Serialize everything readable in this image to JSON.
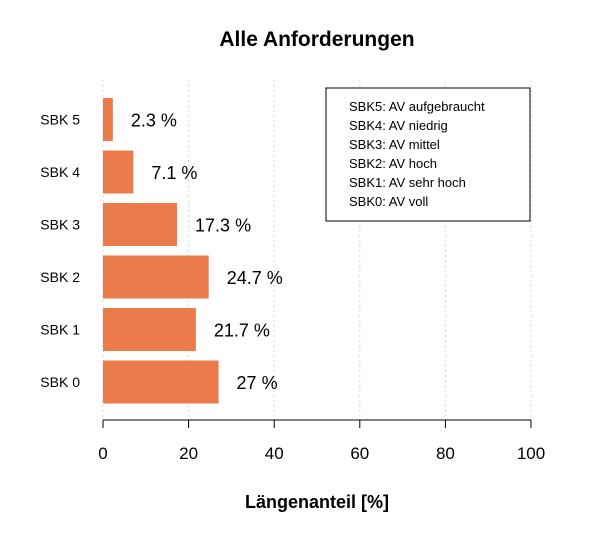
{
  "chart_data": {
    "type": "bar",
    "orientation": "horizontal",
    "title": "Alle Anforderungen",
    "xlabel": "Längenanteil [%]",
    "ylabel": "",
    "xlim": [
      0,
      100
    ],
    "xticks": [
      "0",
      "20",
      "40",
      "60",
      "80",
      "100"
    ],
    "grid": "vertical-dashed",
    "categories": [
      "SBK 5",
      "SBK 4",
      "SBK 3",
      "SBK 2",
      "SBK 1",
      "SBK 0"
    ],
    "values": [
      2.3,
      7.1,
      17.3,
      24.7,
      21.7,
      27
    ],
    "data_labels": [
      "2.3 %",
      "7.1 %",
      "17.3 %",
      "24.7 %",
      "21.7 %",
      "27 %"
    ],
    "bar_color": "#ec7b4b",
    "legend": {
      "placement": "top-right",
      "entries": [
        "SBK5: AV aufgebraucht",
        "SBK4: AV niedrig",
        "SBK3: AV mittel",
        "SBK2: AV hoch",
        "SBK1: AV sehr hoch",
        "SBK0: AV voll"
      ]
    }
  }
}
